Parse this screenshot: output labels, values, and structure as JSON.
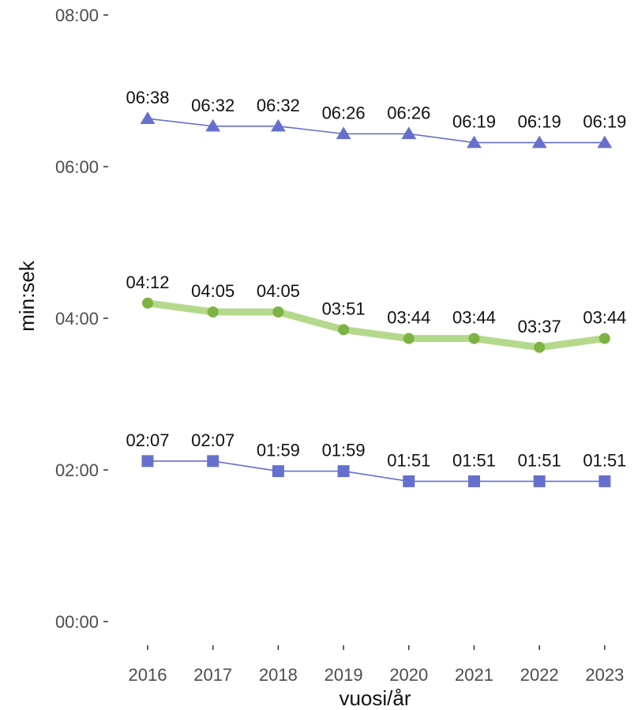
{
  "chart_data": {
    "type": "line",
    "xlabel": "vuosi/år",
    "ylabel": "min:sek",
    "x": [
      2016,
      2017,
      2018,
      2019,
      2020,
      2021,
      2022,
      2023
    ],
    "x_tick_labels": [
      "2016",
      "2017",
      "2018",
      "2019",
      "2020",
      "2021",
      "2022",
      "2023"
    ],
    "y_unit": "seconds",
    "ylim": [
      0,
      480
    ],
    "y_ticks": [
      0,
      120,
      240,
      360,
      480
    ],
    "y_tick_labels": [
      "00:00",
      "02:00",
      "04:00",
      "06:00",
      "08:00"
    ],
    "grid": false,
    "legend": "none",
    "series": [
      {
        "marker": "triangle",
        "color": "#6670cc",
        "values": [
          398,
          392,
          392,
          386,
          386,
          379,
          379,
          379
        ],
        "labels": [
          "06:38",
          "06:32",
          "06:32",
          "06:26",
          "06:26",
          "06:19",
          "06:19",
          "06:19"
        ]
      },
      {
        "marker": "circle",
        "color": "#7cb342",
        "line_color": "#b5d98c",
        "values": [
          252,
          245,
          245,
          231,
          224,
          224,
          217,
          224
        ],
        "labels": [
          "04:12",
          "04:05",
          "04:05",
          "03:51",
          "03:44",
          "03:44",
          "03:37",
          "03:44"
        ]
      },
      {
        "marker": "square",
        "color": "#6670cc",
        "values": [
          127,
          127,
          119,
          119,
          111,
          111,
          111,
          111
        ],
        "labels": [
          "02:07",
          "02:07",
          "01:59",
          "01:59",
          "01:51",
          "01:51",
          "01:51",
          "01:51"
        ]
      }
    ]
  }
}
